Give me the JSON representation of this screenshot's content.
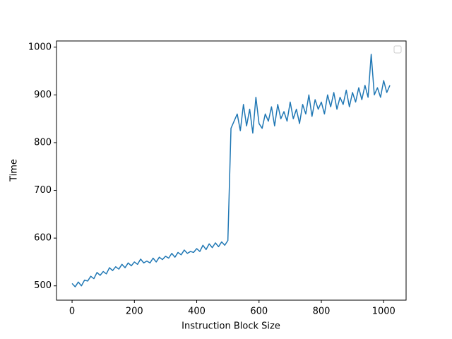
{
  "chart_data": {
    "type": "line",
    "xlabel": "Instruction Block Size",
    "ylabel": "Time",
    "x": [
      0,
      10,
      20,
      30,
      40,
      50,
      60,
      70,
      80,
      90,
      100,
      110,
      120,
      130,
      140,
      150,
      160,
      170,
      180,
      190,
      200,
      210,
      220,
      230,
      240,
      250,
      260,
      270,
      280,
      290,
      300,
      310,
      320,
      330,
      340,
      350,
      360,
      370,
      380,
      390,
      400,
      410,
      420,
      430,
      440,
      450,
      460,
      470,
      480,
      490,
      500,
      510,
      520,
      530,
      540,
      550,
      560,
      570,
      580,
      590,
      600,
      610,
      620,
      630,
      640,
      650,
      660,
      670,
      680,
      690,
      700,
      710,
      720,
      730,
      740,
      750,
      760,
      770,
      780,
      790,
      800,
      810,
      820,
      830,
      840,
      850,
      860,
      870,
      880,
      890,
      900,
      910,
      920,
      930,
      940,
      950,
      960,
      970,
      980,
      990,
      1000,
      1010,
      1020
    ],
    "series": [
      {
        "color": "#1f77b4",
        "values": [
          505,
          498,
          508,
          500,
          512,
          510,
          520,
          515,
          528,
          522,
          530,
          525,
          538,
          532,
          540,
          535,
          545,
          538,
          548,
          542,
          550,
          545,
          556,
          548,
          552,
          548,
          558,
          550,
          560,
          555,
          562,
          558,
          568,
          560,
          570,
          565,
          575,
          568,
          572,
          570,
          578,
          572,
          585,
          576,
          588,
          580,
          590,
          582,
          592,
          585,
          595,
          830,
          845,
          860,
          825,
          880,
          835,
          870,
          820,
          895,
          840,
          830,
          860,
          845,
          875,
          835,
          880,
          850,
          865,
          845,
          885,
          850,
          870,
          840,
          880,
          860,
          900,
          855,
          890,
          870,
          885,
          860,
          900,
          875,
          905,
          870,
          895,
          880,
          910,
          875,
          905,
          885,
          915,
          890,
          920,
          895,
          985,
          900,
          915,
          895,
          930,
          905,
          920
        ]
      }
    ],
    "xlim": [
      -50,
      1072
    ],
    "ylim": [
      470,
      1013
    ],
    "xticks": [
      0,
      200,
      400,
      600,
      800,
      1000
    ],
    "yticks": [
      500,
      600,
      700,
      800,
      900,
      1000
    ],
    "legend": "upper right"
  }
}
